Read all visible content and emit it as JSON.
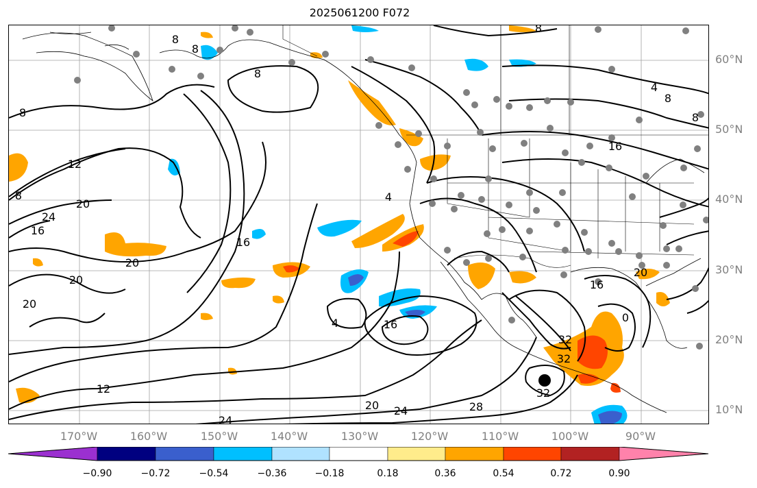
{
  "title": "2025061200 F072",
  "lat_labels": [
    "60°N",
    "50°N",
    "40°N",
    "30°N",
    "20°N",
    "10°N"
  ],
  "lon_labels": [
    "170°W",
    "160°W",
    "150°W",
    "140°W",
    "130°W",
    "120°W",
    "110°W",
    "100°W",
    "90°W"
  ],
  "contour_labels": [
    "8",
    "8",
    "8",
    "8",
    "8",
    "4",
    "8",
    "8",
    "12",
    "8",
    "20",
    "24",
    "16",
    "16",
    "20",
    "20",
    "20",
    "4",
    "16",
    "4",
    "16",
    "16",
    "32",
    "32",
    "32",
    "12",
    "20",
    "24",
    "28",
    "24",
    "20",
    "0"
  ],
  "colorbar": {
    "tick_labels": [
      "−0.90",
      "−0.72",
      "−0.54",
      "−0.36",
      "−0.18",
      "0.18",
      "0.36",
      "0.54",
      "0.72",
      "0.90"
    ],
    "colors": [
      "#9b30d0",
      "#000080",
      "#3a5fcd",
      "#00bfff",
      "#b0e2ff",
      "#ffffff",
      "#ffec8b",
      "#ffa500",
      "#ff4500",
      "#b22222",
      "#ff82ab"
    ]
  },
  "colors": {
    "contour": "#000000",
    "grid": "#a0a0a0",
    "station": "#808080",
    "axis_label": "#808080"
  },
  "map_features": [
    "geopotential-height-contours",
    "shaded-anomaly",
    "station-dots",
    "coastlines",
    "state-borders",
    "storm-center-dot"
  ]
}
